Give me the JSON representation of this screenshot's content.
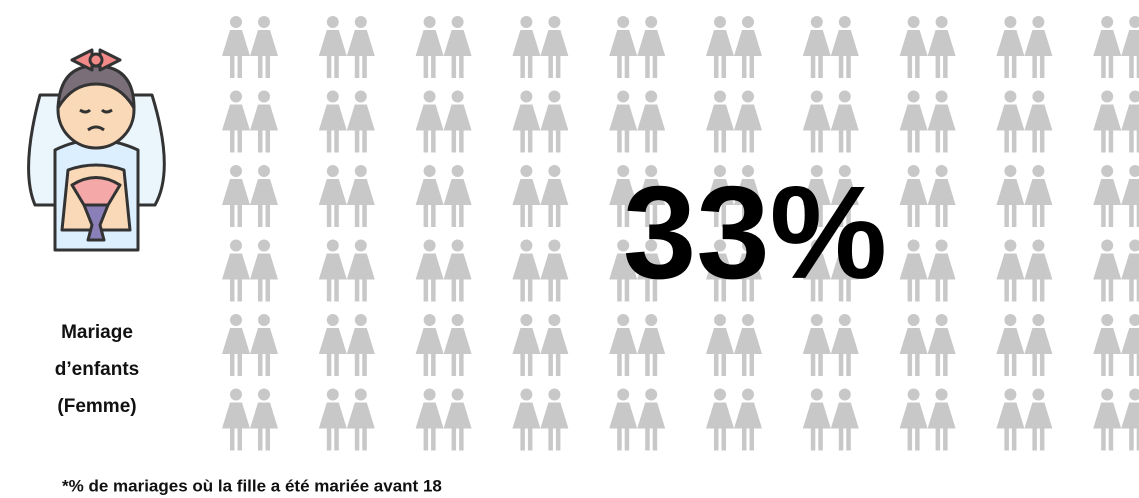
{
  "chart_data": {
    "type": "waffle",
    "value": 33,
    "value_label": "33%",
    "rows": 6,
    "columns": 10,
    "fill_order": "column",
    "color": "#ff0000",
    "empty_color": "#c8c8c8",
    "label_lines": [
      "Mariage",
      "d’enfants",
      "(Femme)"
    ],
    "footnote": "*% de mariages où la fille a été mariée avant 18"
  }
}
